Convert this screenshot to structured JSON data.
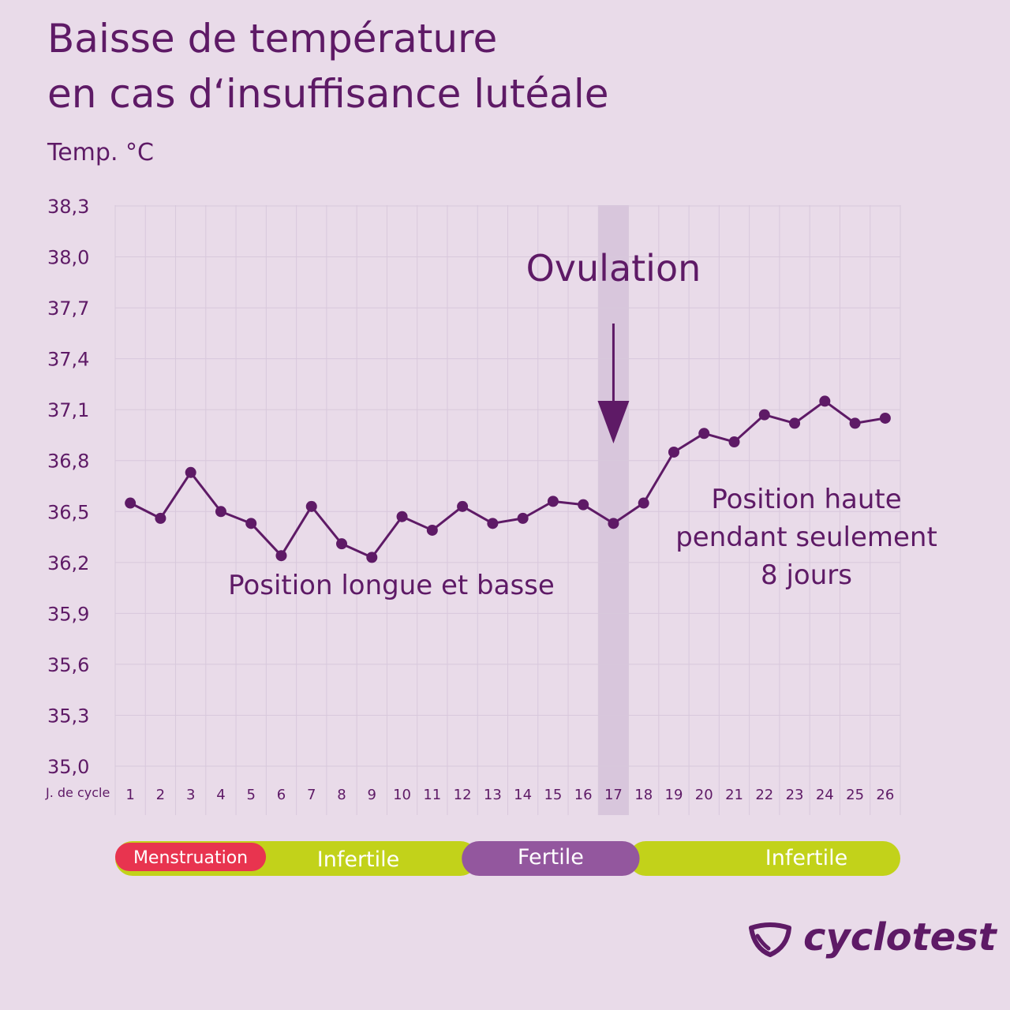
{
  "title_line1": "Baisse de température",
  "title_line2": "en cas d‘insuffisance lutéale",
  "brand": "cyclotest",
  "chart_data": {
    "type": "line",
    "ylabel": "Temp. °C",
    "xlabel": "J. de cycle",
    "ylim": [
      35.0,
      38.3
    ],
    "yticks": [
      "38,3",
      "38,0",
      "37,7",
      "37,4",
      "37,1",
      "36,8",
      "36,5",
      "36,2",
      "35,9",
      "35,6",
      "35,3",
      "35,0"
    ],
    "categories": [
      "1",
      "2",
      "3",
      "4",
      "5",
      "6",
      "7",
      "8",
      "9",
      "10",
      "11",
      "12",
      "13",
      "14",
      "15",
      "16",
      "17",
      "18",
      "19",
      "20",
      "21",
      "22",
      "23",
      "24",
      "25",
      "26"
    ],
    "series": [
      {
        "values": [
          36.55,
          36.46,
          36.73,
          36.5,
          36.43,
          36.24,
          36.53,
          36.31,
          36.23,
          36.47,
          36.39,
          36.53,
          36.43,
          36.46,
          36.56,
          36.54,
          36.43,
          36.55,
          36.85,
          36.96,
          36.91,
          37.07,
          37.02,
          37.15,
          37.02,
          37.05
        ],
        "color": "#5e1a66"
      }
    ],
    "highlight_day": "17",
    "highlight_color": "#d8c6dc",
    "grid": true,
    "annotations": {
      "ovulation": "Ovulation",
      "low_phase": "Position longue et basse",
      "high_phase_lines": [
        "Position haute",
        "pendant seulement",
        "8 jours"
      ]
    },
    "phases": [
      {
        "label": "Menstruation",
        "color": "#e8344f",
        "from_day": 1,
        "to_day": 5
      },
      {
        "label": "Infertile",
        "color": "#c2d21a",
        "from_day": 1,
        "to_day": 12
      },
      {
        "label": "Fertile",
        "color": "#93579e",
        "from_day": 13,
        "to_day": 18
      },
      {
        "label": "Infertile",
        "color": "#c2d21a",
        "from_day": 18,
        "to_day": 26
      }
    ],
    "colors": {
      "line": "#5e1a66",
      "grid": "#d8c8dc",
      "background": "#e9dbe9",
      "text": "#5e1a66"
    }
  }
}
